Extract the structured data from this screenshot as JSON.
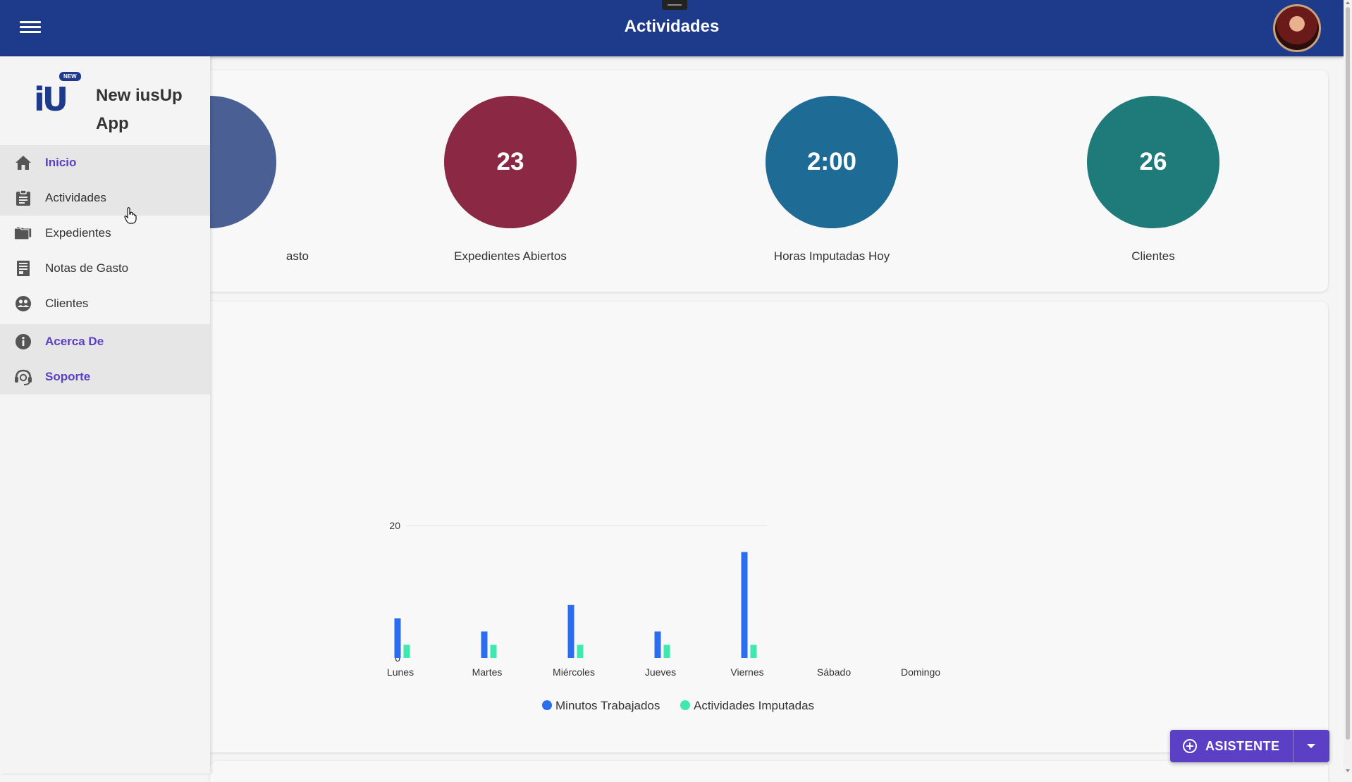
{
  "header": {
    "title": "Actividades"
  },
  "brand": {
    "badge": "NEW",
    "name": "New iusUp App"
  },
  "sidebar": {
    "items": [
      {
        "label": "Inicio",
        "icon": "home-icon"
      },
      {
        "label": "Actividades",
        "icon": "clipboard-icon"
      },
      {
        "label": "Expedientes",
        "icon": "folders-icon"
      },
      {
        "label": "Notas de Gasto",
        "icon": "receipt-icon"
      },
      {
        "label": "Clientes",
        "icon": "clients-icon"
      },
      {
        "label": "Acerca De",
        "icon": "info-icon"
      },
      {
        "label": "Soporte",
        "icon": "support-icon"
      }
    ]
  },
  "stats": [
    {
      "value": "",
      "label": "asto",
      "color": "#4a5f94"
    },
    {
      "value": "23",
      "label": "Expedientes Abiertos",
      "color": "#8b2945"
    },
    {
      "value": "2:00",
      "label": "Horas Imputadas Hoy",
      "color": "#1e6b96"
    },
    {
      "value": "26",
      "label": "Clientes",
      "color": "#1f7a7a"
    }
  ],
  "chart_data": {
    "type": "bar",
    "categories": [
      "Lunes",
      "Martes",
      "Miércoles",
      "Jueves",
      "Viernes",
      "Sábado",
      "Domingo"
    ],
    "series": [
      {
        "name": "Minutos Trabajados",
        "color": "#2c6cf0",
        "values": [
          6,
          4,
          8,
          4,
          16,
          0,
          0
        ]
      },
      {
        "name": "Actividades Imputadas",
        "color": "#3ee8b0",
        "values": [
          2,
          2,
          2,
          2,
          2,
          0,
          0
        ]
      }
    ],
    "y_ticks": [
      "0",
      "20"
    ],
    "ylim": [
      0,
      40
    ],
    "grid": true,
    "legend": "bottom"
  },
  "fab": {
    "label": "ASISTENTE"
  }
}
